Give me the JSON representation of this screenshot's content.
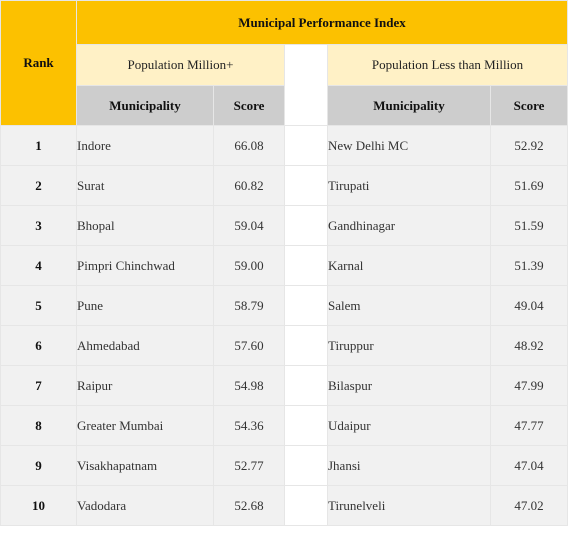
{
  "table": {
    "title": "Municipal Performance Index",
    "rank_header": "Rank",
    "group_left": "Population Million+",
    "group_right": "Population Less than Million",
    "col_municipality": "Municipality",
    "col_score": "Score",
    "rows": [
      {
        "rank": "1",
        "left_name": "Indore",
        "left_score": "66.08",
        "right_name": "New Delhi MC",
        "right_score": "52.92"
      },
      {
        "rank": "2",
        "left_name": "Surat",
        "left_score": "60.82",
        "right_name": "Tirupati",
        "right_score": "51.69"
      },
      {
        "rank": "3",
        "left_name": "Bhopal",
        "left_score": "59.04",
        "right_name": "Gandhinagar",
        "right_score": "51.59"
      },
      {
        "rank": "4",
        "left_name": "Pimpri Chinchwad",
        "left_score": "59.00",
        "right_name": "Karnal",
        "right_score": "51.39"
      },
      {
        "rank": "5",
        "left_name": "Pune",
        "left_score": "58.79",
        "right_name": "Salem",
        "right_score": "49.04"
      },
      {
        "rank": "6",
        "left_name": "Ahmedabad",
        "left_score": "57.60",
        "right_name": "Tiruppur",
        "right_score": "48.92"
      },
      {
        "rank": "7",
        "left_name": "Raipur",
        "left_score": "54.98",
        "right_name": "Bilaspur",
        "right_score": "47.99"
      },
      {
        "rank": "8",
        "left_name": "Greater Mumbai",
        "left_score": "54.36",
        "right_name": "Udaipur",
        "right_score": "47.77"
      },
      {
        "rank": "9",
        "left_name": "Visakhapatnam",
        "left_score": "52.77",
        "right_name": "Jhansi",
        "right_score": "47.04"
      },
      {
        "rank": "10",
        "left_name": "Vadodara",
        "left_score": "52.68",
        "right_name": "Tirunelveli",
        "right_score": "47.02"
      }
    ]
  },
  "colors": {
    "header_gold": "#fcc100",
    "group_cream": "#fff1c6",
    "column_header_gray": "#cdcdcd",
    "cell_gray": "#f1f1f1"
  }
}
